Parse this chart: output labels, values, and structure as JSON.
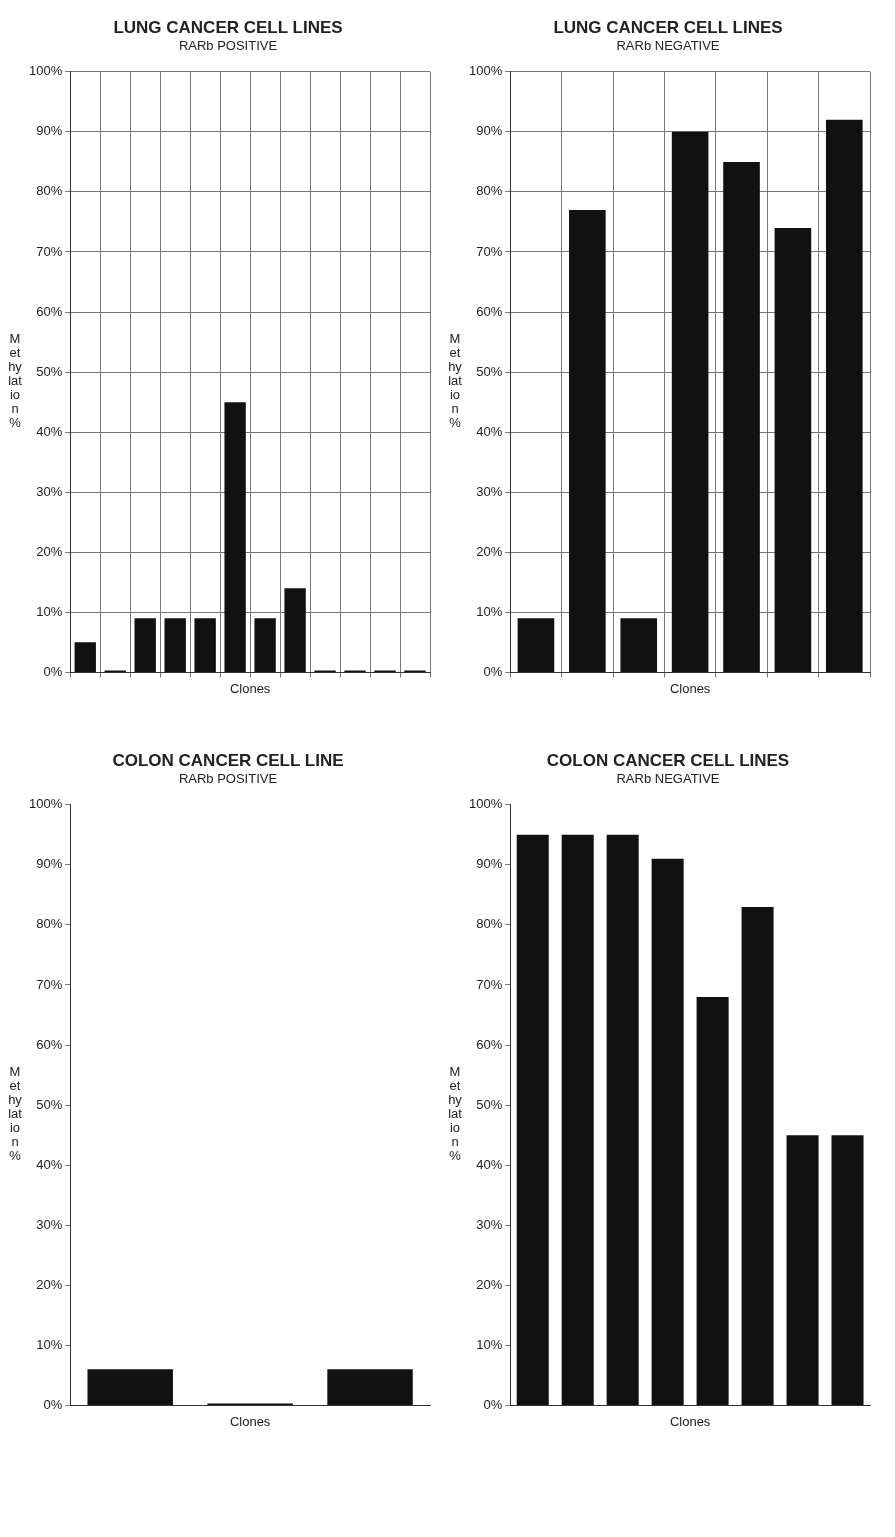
{
  "chart_data": [
    {
      "type": "bar",
      "title": "LUNG CANCER CELL LINES",
      "subtitle": "RARb POSITIVE",
      "xlabel": "Clones",
      "ylabel": "Methylation %",
      "categories": [
        null,
        null,
        null,
        null,
        null,
        null,
        null,
        null,
        null,
        null,
        null,
        null
      ],
      "values": [
        5,
        0,
        9,
        9,
        9,
        45,
        9,
        14,
        0,
        0,
        0,
        0
      ],
      "color": "#111111",
      "ylim": [
        0,
        100
      ],
      "yticks": [
        {
          "value": 0,
          "label": "0%"
        },
        {
          "value": 10,
          "label": "10%"
        },
        {
          "value": 20,
          "label": "20%"
        },
        {
          "value": 30,
          "label": "30%"
        },
        {
          "value": 40,
          "label": "40%"
        },
        {
          "value": 50,
          "label": "50%"
        },
        {
          "value": 60,
          "label": "60%"
        },
        {
          "value": 70,
          "label": "70%"
        },
        {
          "value": 80,
          "label": "80%"
        },
        {
          "value": 90,
          "label": "90%"
        },
        {
          "value": 100,
          "label": "100%"
        }
      ],
      "grid": true,
      "legend": false
    },
    {
      "type": "bar",
      "title": "LUNG CANCER CELL LINES",
      "subtitle": "RARb NEGATIVE",
      "xlabel": "Clones",
      "ylabel": "Methylation %",
      "categories": [
        null,
        null,
        null,
        null,
        null,
        null,
        null
      ],
      "values": [
        9,
        77,
        9,
        90,
        85,
        74,
        92
      ],
      "color": "#111111",
      "ylim": [
        0,
        100
      ],
      "yticks": [
        {
          "value": 0,
          "label": "0%"
        },
        {
          "value": 10,
          "label": "10%"
        },
        {
          "value": 20,
          "label": "20%"
        },
        {
          "value": 30,
          "label": "30%"
        },
        {
          "value": 40,
          "label": "40%"
        },
        {
          "value": 50,
          "label": "50%"
        },
        {
          "value": 60,
          "label": "60%"
        },
        {
          "value": 70,
          "label": "70%"
        },
        {
          "value": 80,
          "label": "80%"
        },
        {
          "value": 90,
          "label": "90%"
        },
        {
          "value": 100,
          "label": "100%"
        }
      ],
      "grid": true,
      "legend": false
    },
    {
      "type": "bar",
      "title": "COLON CANCER CELL LINE",
      "subtitle": "RARb POSITIVE",
      "xlabel": "Clones",
      "ylabel": "Methylation %",
      "categories": [
        null,
        null,
        null
      ],
      "values": [
        6,
        0,
        6
      ],
      "color": "#111111",
      "ylim": [
        0,
        100
      ],
      "yticks": [
        {
          "value": 0,
          "label": "0%"
        },
        {
          "value": 10,
          "label": "10%"
        },
        {
          "value": 20,
          "label": "20%"
        },
        {
          "value": 30,
          "label": "30%"
        },
        {
          "value": 40,
          "label": "40%"
        },
        {
          "value": 50,
          "label": "50%"
        },
        {
          "value": 60,
          "label": "60%"
        },
        {
          "value": 70,
          "label": "70%"
        },
        {
          "value": 80,
          "label": "80%"
        },
        {
          "value": 90,
          "label": "90%"
        },
        {
          "value": 100,
          "label": "100%"
        }
      ],
      "grid": false,
      "legend": false
    },
    {
      "type": "bar",
      "title": "COLON CANCER CELL LINES",
      "subtitle": "RARb NEGATIVE",
      "xlabel": "Clones",
      "ylabel": "Methylation %",
      "categories": [
        null,
        null,
        null,
        null,
        null,
        null,
        null,
        null
      ],
      "values": [
        95,
        95,
        95,
        91,
        68,
        83,
        45,
        45
      ],
      "color": "#111111",
      "ylim": [
        0,
        100
      ],
      "yticks": [
        {
          "value": 0,
          "label": "0%"
        },
        {
          "value": 10,
          "label": "10%"
        },
        {
          "value": 20,
          "label": "20%"
        },
        {
          "value": 30,
          "label": "30%"
        },
        {
          "value": 40,
          "label": "40%"
        },
        {
          "value": 50,
          "label": "50%"
        },
        {
          "value": 60,
          "label": "60%"
        },
        {
          "value": 70,
          "label": "70%"
        },
        {
          "value": 80,
          "label": "80%"
        },
        {
          "value": 90,
          "label": "90%"
        },
        {
          "value": 100,
          "label": "100%"
        }
      ],
      "grid": false,
      "legend": false
    }
  ]
}
